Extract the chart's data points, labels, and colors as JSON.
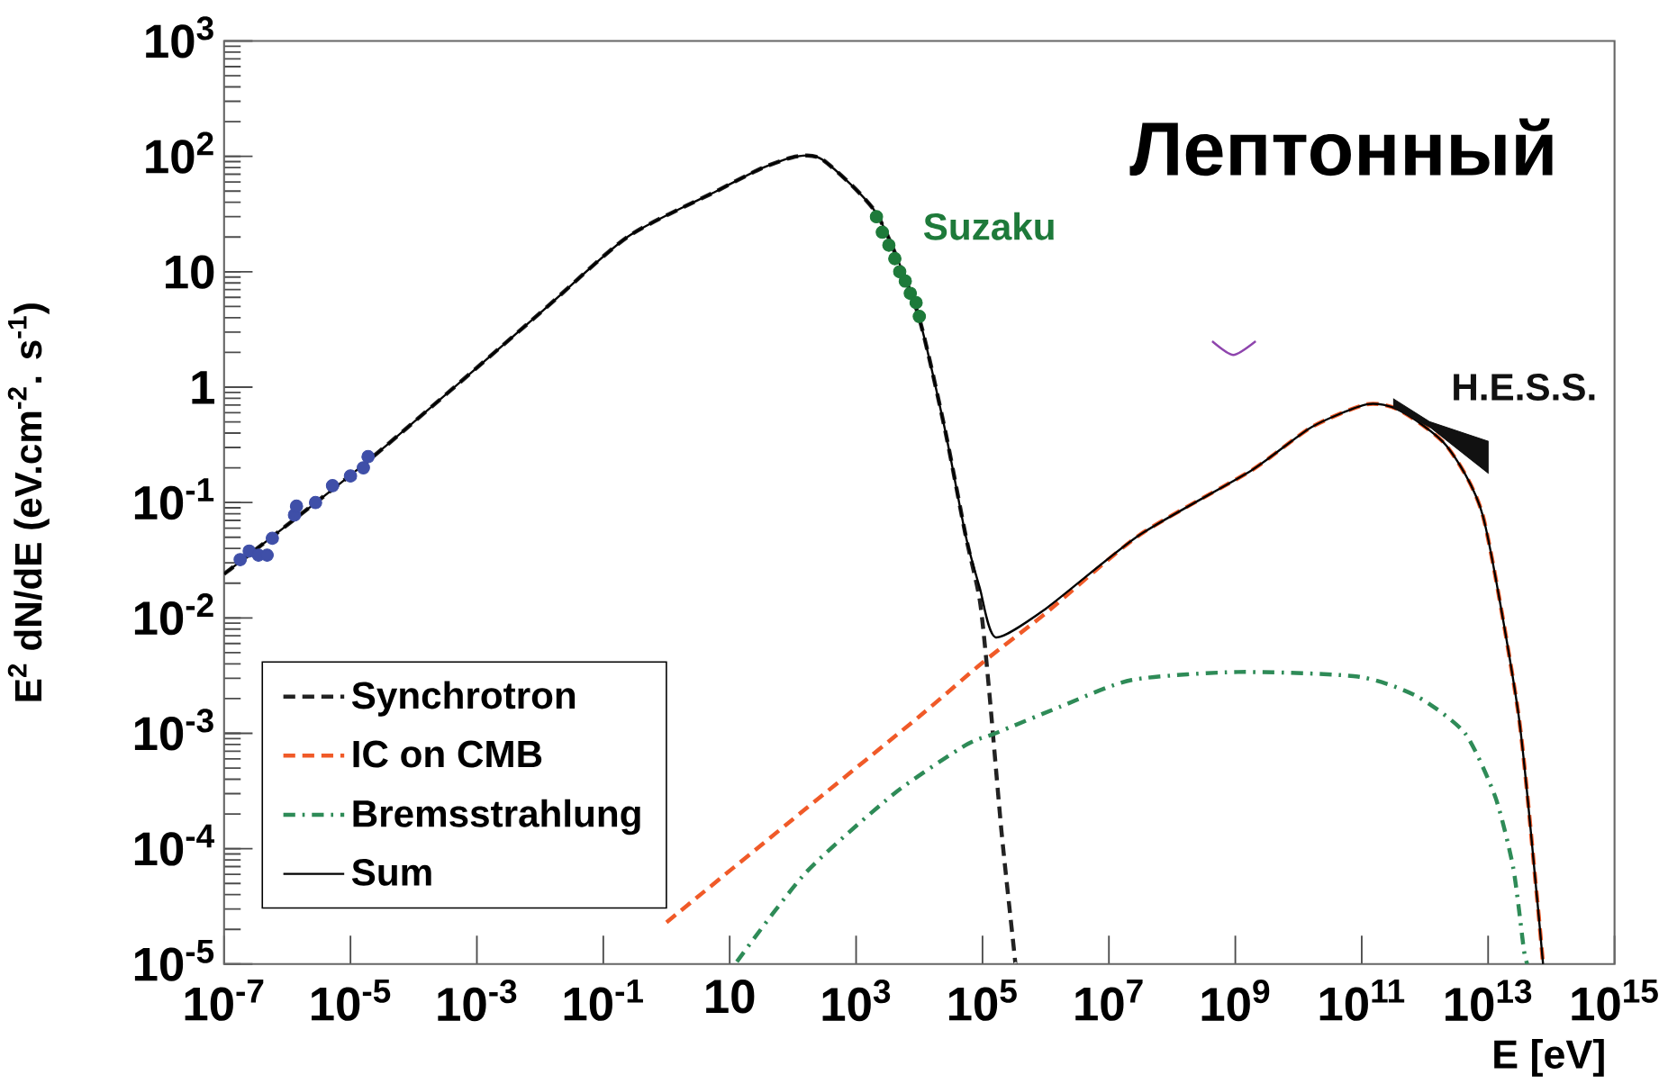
{
  "chart_data": {
    "type": "line",
    "title": "Лептонный",
    "xlabel": "E [eV]",
    "ylabel": "E$^{2}$ dN/dE (eV.cm$^{-2}$. s$^{-1}$)",
    "log": "xy",
    "legend": "bottom left",
    "xlim": [
      1e-07,
      1000000000000000.0
    ],
    "ylim": [
      1e-05,
      1000
    ],
    "xticks": [
      {
        "value": 1e-07,
        "label": "10$^{-7}$"
      },
      {
        "value": 1e-05,
        "label": "10$^{-5}$"
      },
      {
        "value": 0.001,
        "label": "10$^{-3}$"
      },
      {
        "value": 0.1,
        "label": "10$^{-1}$"
      },
      10,
      {
        "value": 1000,
        "label": "10$^{3}$"
      },
      {
        "value": 100000.0,
        "label": "10$^{5}$"
      },
      {
        "value": 10000000.0,
        "label": "10$^{7}$"
      },
      {
        "value": 1000000000.0,
        "label": "10$^{9}$"
      },
      {
        "value": 100000000000.0,
        "label": "10$^{11}$"
      },
      {
        "value": 10000000000000.0,
        "label": "10$^{13}$"
      },
      {
        "value": 1000000000000000.0,
        "label": "10$^{15}$"
      }
    ],
    "yticks": [
      {
        "value": 1e-05,
        "label": "10$^{-5}$"
      },
      {
        "value": 0.0001,
        "label": "10$^{-4}$"
      },
      {
        "value": 0.001,
        "label": "10$^{-3}$"
      },
      {
        "value": 0.01,
        "label": "10$^{-2}$"
      },
      {
        "value": 0.1,
        "label": "10$^{-1}$"
      },
      1,
      10,
      {
        "value": 100,
        "label": "10$^{2}$"
      },
      {
        "value": 1000,
        "label": "10$^{3}$"
      }
    ],
    "series": [
      {
        "name": "Synchrotron",
        "type": "line",
        "color": "#222222",
        "line_style": "dashed",
        "marker": "none",
        "x": [
          1e-07,
          1.9e-05,
          0.0091,
          0.24,
          6.2,
          32,
          115,
          300,
          2100,
          9300,
          25000,
          54000,
          91000,
          126000,
          200000,
          316000,
          331000
        ],
        "values": [
          0.024,
          0.23,
          4.2,
          20,
          50,
          79,
          100,
          93,
          32,
          4.5,
          0.45,
          0.052,
          0.014,
          0.0025,
          0.00014,
          1.3e-05,
          1e-05
        ]
      },
      {
        "name": "IC on CMB",
        "type": "line",
        "color": "#f05a28",
        "line_style": "dashed",
        "marker": "none",
        "x": [
          1,
          100,
          10000,
          100000,
          1000000,
          30000000.0,
          1800000000.0,
          16000000000.0,
          120000000000.0,
          400000000000.0,
          2200000000000.0,
          8300000000000.0,
          30000000000000.0,
          58000000000000.0,
          74000000000000.0
        ],
        "values": [
          2.3e-05,
          0.00018,
          0.0014,
          0.0041,
          0.011,
          0.052,
          0.19,
          0.45,
          0.71,
          0.63,
          0.31,
          0.076,
          0.0015,
          4.3e-05,
          1e-05
        ]
      },
      {
        "name": "Bremsstrahlung",
        "type": "line",
        "color": "#2e8b57",
        "line_style": "dashdot",
        "marker": "none",
        "x": [
          13,
          160,
          4000,
          54000,
          160000,
          1700000.0,
          23000000.0,
          1100000000.0,
          87000000000.0,
          740000000000.0,
          4300000000000.0,
          13000000000000.0,
          25000000000000.0,
          37000000000000.0,
          42000000000000.0
        ],
        "values": [
          1.05e-05,
          6.2e-05,
          0.0003,
          0.00079,
          0.001,
          0.0017,
          0.0029,
          0.0034,
          0.0031,
          0.0021,
          0.001,
          0.00028,
          6.8e-05,
          1.3e-05,
          1e-05
        ]
      },
      {
        "name": "Sum",
        "type": "line",
        "color": "#000000",
        "line_style": "solid",
        "marker": "none",
        "x": [
          1e-07,
          1.9e-05,
          0.0091,
          0.24,
          6.2,
          32,
          115,
          300,
          2100,
          9300,
          25000,
          54000,
          91000,
          160000,
          1000000,
          30000000.0,
          1800000000.0,
          16000000000.0,
          120000000000.0,
          400000000000.0,
          2200000000000.0,
          8300000000000.0,
          30000000000000.0,
          58000000000000.0,
          74000000000000.0
        ],
        "values": [
          0.024,
          0.23,
          4.2,
          20,
          50,
          79,
          100,
          93,
          32,
          4.5,
          0.45,
          0.052,
          0.018,
          0.0068,
          0.012,
          0.052,
          0.19,
          0.45,
          0.71,
          0.63,
          0.31,
          0.076,
          0.0015,
          4.3e-05,
          1e-05
        ]
      },
      {
        "type": "scatter",
        "color": "#3f4fa8",
        "marker": "circle",
        "x": [
          1.8e-07,
          2.5e-07,
          3.5e-07,
          4.8e-07,
          5.8e-07,
          1.3e-06,
          1.4e-06,
          2.8e-06,
          5.2e-06,
          1e-05,
          1.6e-05,
          1.9e-05
        ],
        "values": [
          0.032,
          0.038,
          0.035,
          0.035,
          0.049,
          0.078,
          0.093,
          0.1,
          0.14,
          0.17,
          0.2,
          0.25
        ]
      },
      {
        "name": "Suzaku",
        "type": "scatter",
        "color": "#1e7a3a",
        "marker": "circle",
        "x": [
          2100,
          2600,
          3300,
          4100,
          4900,
          6000,
          7200,
          8900,
          10000
        ],
        "values": [
          30,
          22,
          17,
          13,
          10,
          8.3,
          6.5,
          5.4,
          4.1
        ]
      },
      {
        "name": "H.E.S.S.",
        "type": "line",
        "color": "#111111",
        "x": [
          320000000000.0,
          1200000000000.0,
          10000000000000.0
        ],
        "values": [
          null,
          null,
          null
        ],
        "lower": [
          0.66,
          0.45,
          0.18
        ],
        "upper": [
          0.79,
          0.5,
          0.34
        ]
      },
      {
        "type": "line",
        "color": "#8e44ad",
        "line_style": "solid",
        "marker": "none",
        "x": [
          430000000.0,
          930000000.0,
          2100000000.0
        ],
        "values": [
          2.5,
          1.9,
          2.5
        ]
      }
    ]
  }
}
